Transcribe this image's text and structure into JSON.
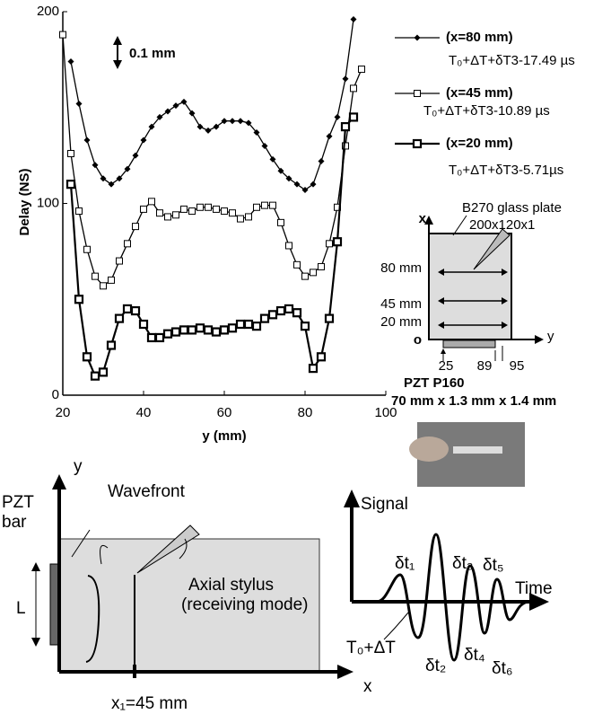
{
  "chart_data": {
    "type": "line",
    "x_label": "y (mm)",
    "y_label": "Delay (NS)",
    "annotation": "0.1 mm",
    "xlim": [
      20,
      100
    ],
    "xticks": [
      20,
      40,
      60,
      80,
      100
    ],
    "ylim": [
      0,
      200
    ],
    "yticks": [
      0,
      100,
      200
    ],
    "series": [
      {
        "name": "(x=80 mm)",
        "note": "T₀+ΔT+δT3-17.49 µs",
        "color": "#000000",
        "marker": "diamond",
        "x": [
          22,
          24,
          26,
          28,
          30,
          32,
          34,
          36,
          38,
          40,
          42,
          44,
          46,
          48,
          50,
          52,
          54,
          56,
          58,
          60,
          62,
          64,
          66,
          68,
          70,
          72,
          74,
          76,
          78,
          80,
          82,
          84,
          86,
          88,
          90,
          92
        ],
        "values": [
          174,
          152,
          133,
          120,
          113,
          110,
          113,
          118,
          125,
          133,
          140,
          145,
          148,
          151,
          153,
          147,
          140,
          138,
          140,
          143,
          143,
          143,
          142,
          137,
          130,
          123,
          117,
          113,
          110,
          107,
          110,
          122,
          135,
          145,
          165,
          196
        ]
      },
      {
        "name": "(x=45 mm)",
        "note": "T₀+ΔT+δT3-10.89 µs",
        "color": "#000000",
        "marker": "square-open",
        "x": [
          20,
          22,
          24,
          26,
          28,
          30,
          32,
          34,
          36,
          38,
          40,
          42,
          44,
          46,
          48,
          50,
          52,
          54,
          56,
          58,
          60,
          62,
          64,
          66,
          68,
          70,
          72,
          74,
          76,
          78,
          80,
          82,
          84,
          86,
          88,
          90,
          92,
          94
        ],
        "values": [
          188,
          126,
          96,
          76,
          62,
          57,
          60,
          70,
          79,
          88,
          97,
          101,
          95,
          93,
          94,
          97,
          96,
          98,
          98,
          97,
          96,
          95,
          92,
          93,
          98,
          99,
          99,
          90,
          78,
          68,
          62,
          64,
          67,
          79,
          98,
          130,
          160,
          170
        ]
      },
      {
        "name": "(x=20 mm)",
        "note": "T₀+ΔT+δT3-5.71µs",
        "color": "#000000",
        "marker": "square-bold",
        "x": [
          22,
          24,
          26,
          28,
          30,
          32,
          34,
          36,
          38,
          40,
          42,
          44,
          46,
          48,
          50,
          52,
          54,
          56,
          58,
          60,
          62,
          64,
          66,
          68,
          70,
          72,
          74,
          76,
          78,
          80,
          82,
          84,
          86,
          88,
          90,
          92
        ],
        "values": [
          110,
          50,
          20,
          10,
          12,
          26,
          40,
          45,
          44,
          37,
          30,
          30,
          32,
          33,
          34,
          34,
          35,
          34,
          33,
          34,
          35,
          37,
          37,
          36,
          40,
          42,
          44,
          45,
          43,
          36,
          14,
          20,
          40,
          80,
          140,
          145
        ]
      }
    ]
  },
  "inset_diagram": {
    "plate": "B270 glass plate",
    "plate_size": "200x120x1",
    "x_axis": "x",
    "y_axis": "y",
    "origin": "o",
    "rows": [
      "80 mm",
      "45 mm",
      "20 mm"
    ],
    "positions": [
      "25",
      "89",
      "95"
    ],
    "pzt": "PZT P160",
    "pzt_size": "70 mm x 1.3 mm x 1.4 mm"
  },
  "setup_diagram": {
    "y_axis": "y",
    "x_axis": "x",
    "pzt": "PZT",
    "bar": "bar",
    "wavefront": "Wavefront",
    "length": "L",
    "stylus": "Axial stylus",
    "mode": "(receiving mode)",
    "position": "x₁=45 mm"
  },
  "signal_diagram": {
    "y_axis": "Signal",
    "x_axis": "Time",
    "offset": "T₀+ΔT",
    "deltas": [
      "δt₁",
      "δt₂",
      "δt₃",
      "δt₄",
      "δt₅",
      "δt₆"
    ]
  }
}
